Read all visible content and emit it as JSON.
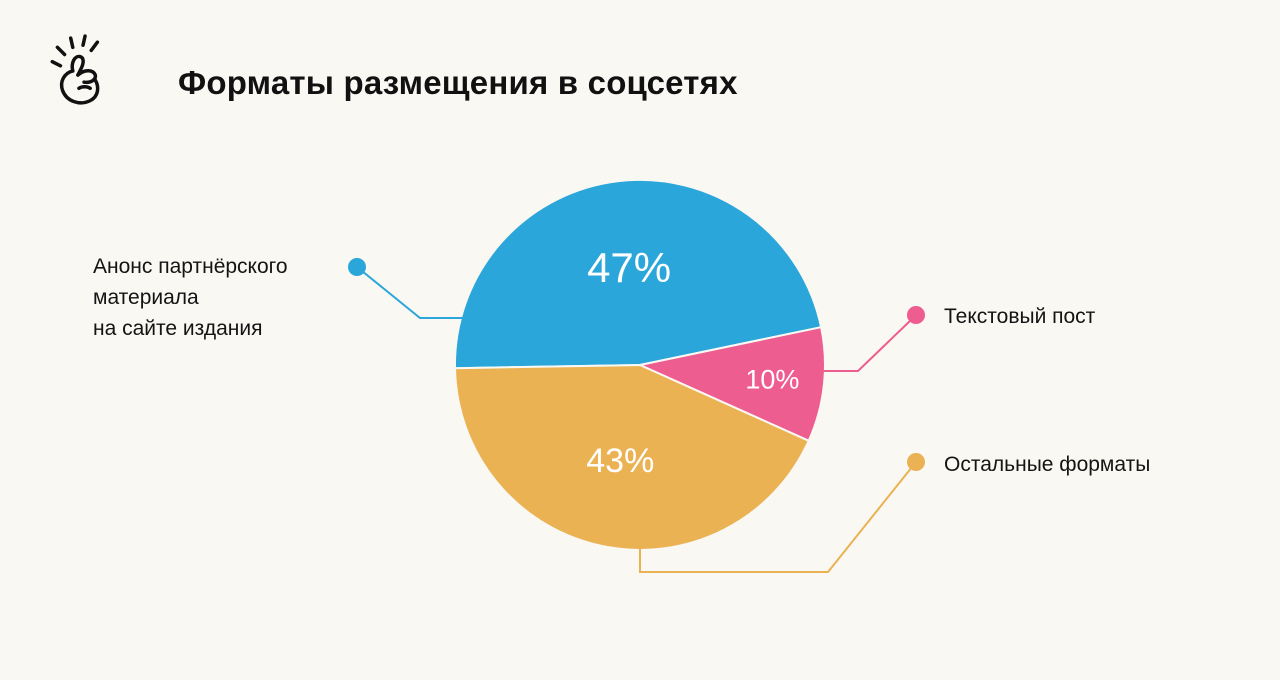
{
  "page": {
    "background": "#FAF8F2",
    "title": "Форматы размещения в соцсетях",
    "logo": "snap-fingers-hand"
  },
  "chart_data": {
    "type": "pie",
    "title": "Форматы размещения в соцсетях",
    "unit": "%",
    "start_angle_deg": 181,
    "direction": "clockwise",
    "legend_position": "callouts",
    "slices": [
      {
        "id": "announce",
        "label": "Анонс партнёрского материала на сайте издания",
        "value": 47,
        "display": "47%",
        "color": "#2BA6DB"
      },
      {
        "id": "text-post",
        "label": "Текстовый пост",
        "value": 10,
        "display": "10%",
        "color": "#EE5D90"
      },
      {
        "id": "other-formats",
        "label": "Остальные форматы",
        "value": 43,
        "display": "43%",
        "color": "#EBB254"
      }
    ],
    "value_label_color": "#FFFFFF"
  },
  "callouts": {
    "left": {
      "text": "Анонс партнёрского\nматериала\nна сайте издания",
      "color": "#2BA6DB"
    },
    "right_top": {
      "text": "Текстовый пост",
      "color": "#EE5D90"
    },
    "right_bottom": {
      "text": "Остальные форматы",
      "color": "#EBB254"
    }
  }
}
